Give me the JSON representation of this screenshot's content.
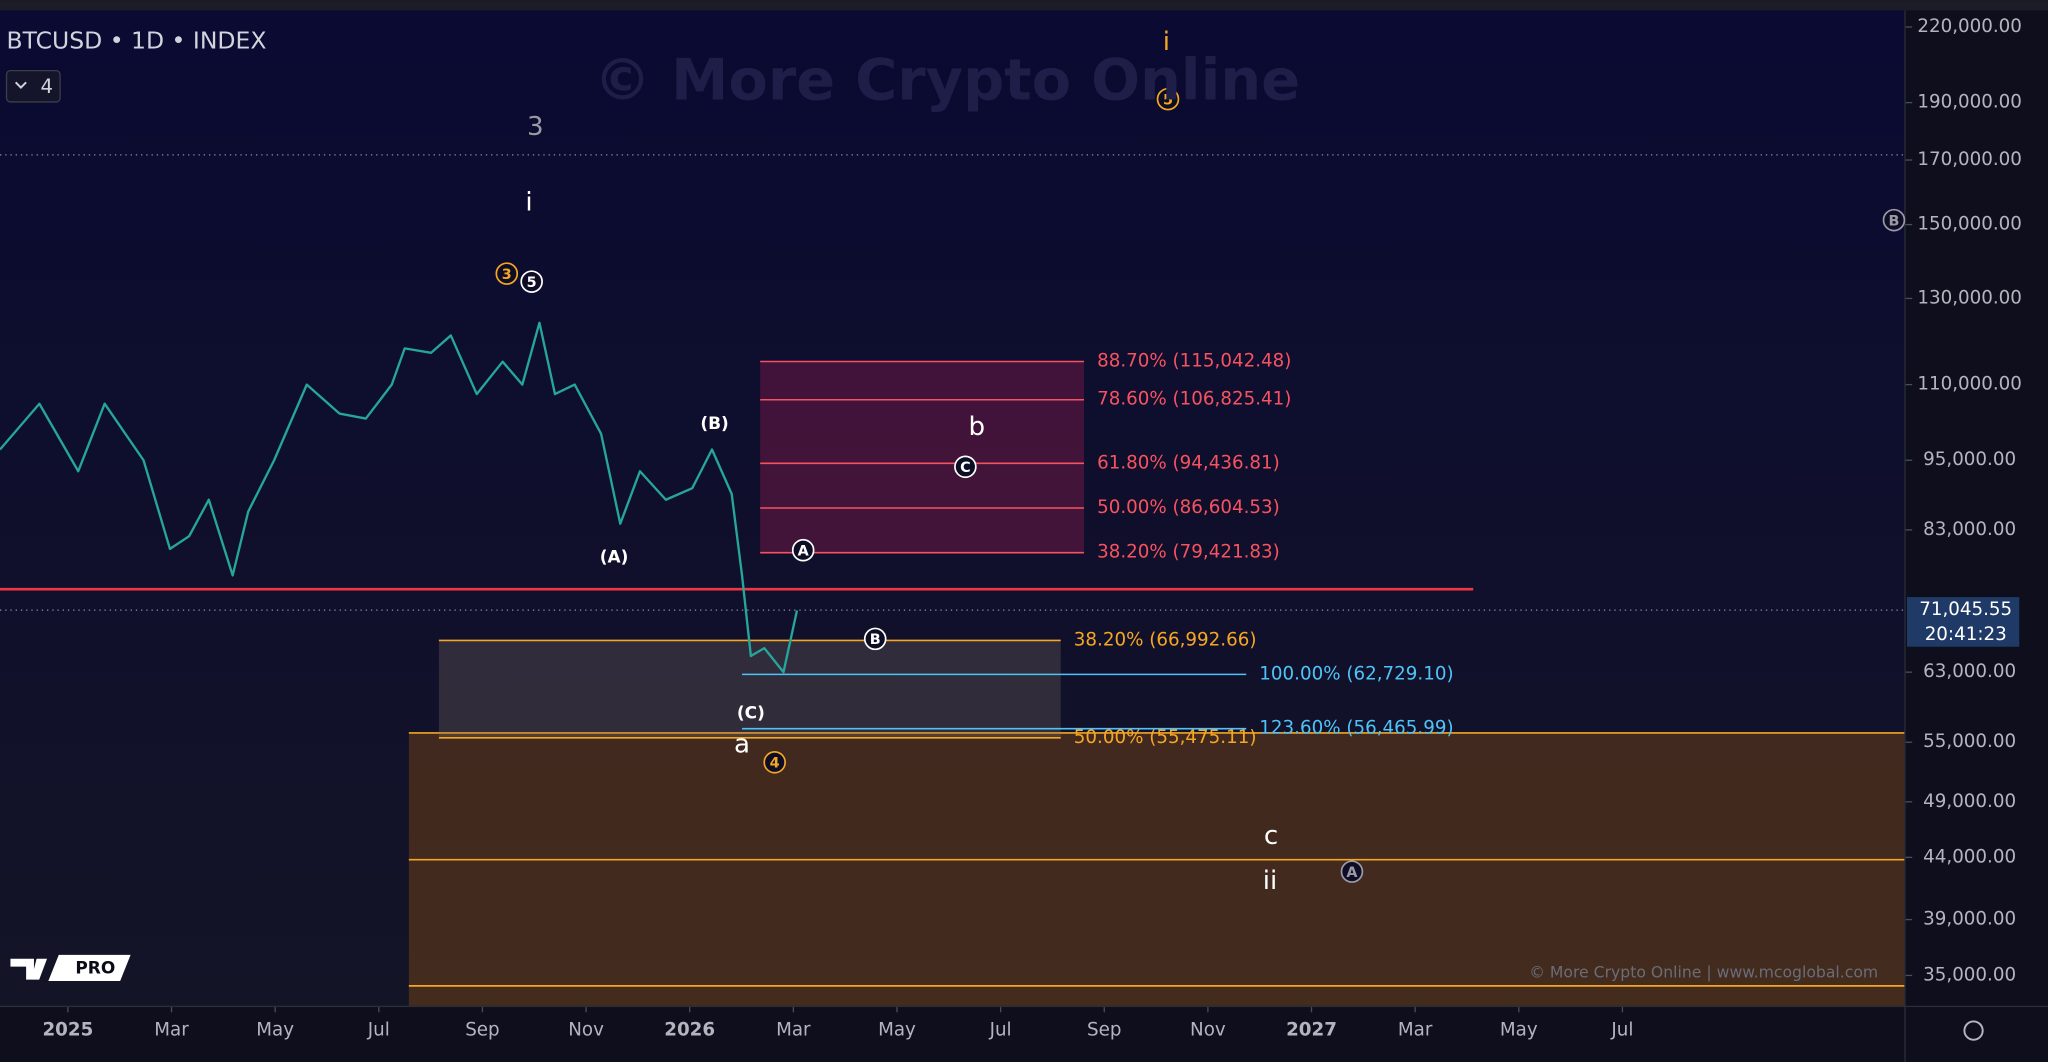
{
  "chart_data": {
    "type": "line",
    "title": "BTCUSD • 1D • INDEX",
    "interval_badge": "4",
    "watermark": "© More Crypto Online",
    "footer_credit": "© More Crypto Online | www.mcoglobal.com",
    "logo_badge": "PRO",
    "log_scale": true,
    "xlim": [
      -1.31,
      35.44
    ],
    "ylim": [
      33000,
      226000
    ],
    "xticks": [
      {
        "value": 0,
        "label": "2025"
      },
      {
        "value": 2,
        "label": "Mar"
      },
      {
        "value": 4,
        "label": "May"
      },
      {
        "value": 6,
        "label": "Jul"
      },
      {
        "value": 8,
        "label": "Sep"
      },
      {
        "value": 10,
        "label": "Nov"
      },
      {
        "value": 12,
        "label": "2026"
      },
      {
        "value": 14,
        "label": "Mar"
      },
      {
        "value": 16,
        "label": "May"
      },
      {
        "value": 18,
        "label": "Jul"
      },
      {
        "value": 20,
        "label": "Sep"
      },
      {
        "value": 22,
        "label": "Nov"
      },
      {
        "value": 24,
        "label": "2027"
      },
      {
        "value": 26,
        "label": "Mar"
      },
      {
        "value": 28,
        "label": "May"
      },
      {
        "value": 30,
        "label": "Jul"
      }
    ],
    "yticks": [
      {
        "value": 220000,
        "label": "220,000.00"
      },
      {
        "value": 190000,
        "label": "190,000.00"
      },
      {
        "value": 170000,
        "label": "170,000.00"
      },
      {
        "value": 150000,
        "label": "150,000.00"
      },
      {
        "value": 130000,
        "label": "130,000.00"
      },
      {
        "value": 110000,
        "label": "110,000.00"
      },
      {
        "value": 95000,
        "label": "95,000.00"
      },
      {
        "value": 83000,
        "label": "83,000.00"
      },
      {
        "value": 63000,
        "label": "63,000.00"
      },
      {
        "value": 55000,
        "label": "55,000.00"
      },
      {
        "value": 49000,
        "label": "49,000.00"
      },
      {
        "value": 44000,
        "label": "44,000.00"
      },
      {
        "value": 39000,
        "label": "39,000.00"
      },
      {
        "value": 35000,
        "label": "35,000.00"
      }
    ],
    "color": "#26a69a",
    "x": [
      -1.31,
      -0.55,
      0.2,
      0.71,
      1.46,
      1.97,
      2.34,
      2.72,
      3.18,
      3.48,
      3.98,
      4.61,
      5.24,
      5.75,
      6.25,
      6.5,
      7.01,
      7.39,
      7.89,
      8.39,
      8.77,
      9.1,
      9.4,
      9.78,
      10.29,
      10.66,
      11.04,
      11.54,
      12.05,
      12.43,
      12.81,
      13.01,
      13.18,
      13.44,
      13.81,
      14.07
    ],
    "values": [
      97000,
      106000,
      93000,
      106000,
      95000,
      80000,
      82000,
      88000,
      76000,
      86000,
      95000,
      110000,
      104000,
      103000,
      110000,
      118000,
      117000,
      121000,
      108000,
      115000,
      110000,
      124000,
      108000,
      110000,
      100000,
      84000,
      93000,
      88000,
      90000,
      97000,
      89000,
      76000,
      65000,
      66000,
      63000,
      71000
    ],
    "last_price": {
      "value": 71045.55,
      "label": "71,045.55"
    },
    "countdown": "20:41:23",
    "horizontal_lines": [
      {
        "value": 74000,
        "color": "#f23645",
        "style": "solid",
        "x_range": [
          -1.31,
          27.12
        ]
      },
      {
        "value": 171700,
        "color": "#8a8fb0",
        "style": "dotted",
        "x_range": [
          -1.31,
          35.44
        ]
      }
    ],
    "fib_sets": [
      {
        "color": "#f7525f",
        "fill": "rgba(150,30,80,0.38)",
        "x_range": [
          13.36,
          19.61
        ],
        "levels": [
          {
            "value": 115042.48,
            "label": "88.70% (115,042.48)"
          },
          {
            "value": 106825.41,
            "label": "78.60% (106,825.41)"
          },
          {
            "value": 94436.81,
            "label": "61.80% (94,436.81)"
          },
          {
            "value": 86604.53,
            "label": "50.00% (86,604.53)"
          },
          {
            "value": 79421.83,
            "label": "38.20% (79,421.83)"
          }
        ]
      },
      {
        "color": "#f5a623",
        "fill": "rgba(130,115,100,0.28)",
        "x_range": [
          7.16,
          19.16
        ],
        "levels": [
          {
            "value": 66992.66,
            "label": "38.20% (66,992.66)"
          },
          {
            "value": 55475.11,
            "label": "50.00% (55,475.11)"
          }
        ]
      },
      {
        "color": "#4fc3f7",
        "x_range": [
          13.01,
          22.74
        ],
        "levels": [
          {
            "value": 62729.1,
            "label": "100.00% (62,729.10)"
          },
          {
            "value": 56465.99,
            "label": "123.60% (56,465.99)"
          }
        ]
      }
    ],
    "zone": {
      "color": "#f5a623",
      "fill": "rgba(125,72,18,0.45)",
      "x_range": [
        6.58,
        35.44
      ],
      "levels": [
        56000,
        43800,
        34300
      ]
    },
    "annotations": [
      {
        "text": "3",
        "x": 9.02,
        "y": 181000,
        "color": "#9a9aa6"
      },
      {
        "text": "i",
        "x": 8.9,
        "y": 156400,
        "color": "#ffffff"
      },
      {
        "text": "3",
        "x": 8.47,
        "y": 136400,
        "color": "#f5a623",
        "circled": true
      },
      {
        "text": "5",
        "x": 8.95,
        "y": 134300,
        "color": "#ffffff",
        "circled": true
      },
      {
        "text": "(B)",
        "x": 12.48,
        "y": 101900,
        "color": "#ffffff"
      },
      {
        "text": "(A)",
        "x": 10.54,
        "y": 78700,
        "color": "#ffffff"
      },
      {
        "text": "(C)",
        "x": 13.18,
        "y": 58160,
        "color": "#ffffff"
      },
      {
        "text": "a",
        "x": 13.01,
        "y": 54700,
        "color": "#ffffff"
      },
      {
        "text": "4",
        "x": 13.64,
        "y": 52900,
        "color": "#f5a623",
        "circled": true
      },
      {
        "text": "A",
        "x": 14.19,
        "y": 79800,
        "color": "#ffffff",
        "circled": true
      },
      {
        "text": "B",
        "x": 15.58,
        "y": 67200,
        "color": "#ffffff",
        "circled": true
      },
      {
        "text": "b",
        "x": 17.54,
        "y": 101200,
        "color": "#ffffff"
      },
      {
        "text": "C",
        "x": 17.32,
        "y": 93800,
        "color": "#ffffff",
        "circled": true
      },
      {
        "text": "i",
        "x": 21.2,
        "y": 213400,
        "color": "#f5a623"
      },
      {
        "text": "5",
        "x": 21.23,
        "y": 191300,
        "color": "#f5a623",
        "circled": true
      },
      {
        "text": "B",
        "x": 35.24,
        "y": 151300,
        "color": "#9a9aa6",
        "circled": true
      },
      {
        "text": "c",
        "x": 23.22,
        "y": 45800,
        "color": "#ffffff"
      },
      {
        "text": "ii",
        "x": 23.2,
        "y": 42000,
        "color": "#ffffff"
      },
      {
        "text": "A",
        "x": 24.78,
        "y": 42800,
        "color": "#9a9aa6",
        "circled": true
      }
    ]
  }
}
